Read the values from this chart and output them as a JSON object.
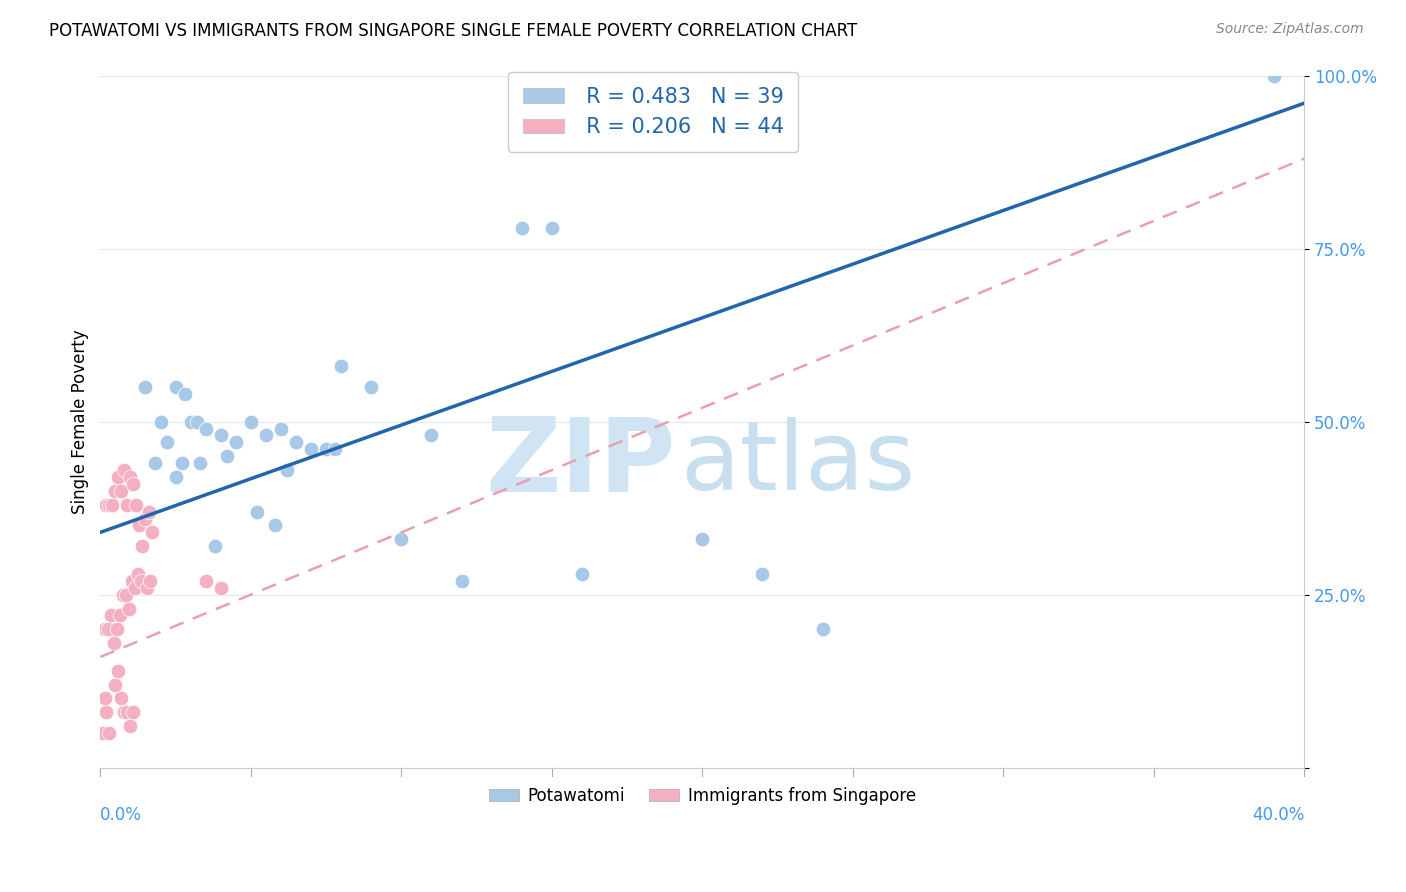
{
  "title": "POTAWATOMI VS IMMIGRANTS FROM SINGAPORE SINGLE FEMALE POVERTY CORRELATION CHART",
  "source": "Source: ZipAtlas.com",
  "ylabel": "Single Female Poverty",
  "blue_color": "#a8c8e8",
  "pink_color": "#f4b0c0",
  "blue_line_color": "#2166ac",
  "pink_line_color": "#e8a0b0",
  "watermark_zip_color": "#d0e4f4",
  "watermark_atlas_color": "#c8dff0",
  "xmin": 0.0,
  "xmax": 40.0,
  "ymin": 0.0,
  "ymax": 100.0,
  "legend_blue_r": "R = 0.483",
  "legend_blue_n": "N = 39",
  "legend_pink_r": "R = 0.206",
  "legend_pink_n": "N = 44",
  "blue_intercept": 34.0,
  "blue_slope": 1.55,
  "pink_intercept": 16.0,
  "pink_slope": 1.8,
  "pot_x": [
    1.0,
    1.5,
    2.0,
    2.5,
    2.8,
    3.0,
    3.2,
    3.5,
    4.0,
    4.5,
    5.0,
    5.5,
    6.0,
    6.5,
    7.0,
    7.5,
    8.0,
    9.0,
    10.0,
    11.0,
    12.0,
    14.0,
    15.0,
    16.0,
    20.0,
    22.0,
    24.0,
    1.8,
    2.2,
    2.7,
    3.3,
    4.2,
    5.2,
    6.2,
    7.8,
    2.5,
    3.8,
    5.8,
    39.0
  ],
  "pot_y": [
    42,
    55,
    50,
    55,
    54,
    50,
    50,
    49,
    48,
    47,
    50,
    48,
    49,
    47,
    46,
    46,
    58,
    55,
    33,
    48,
    27,
    78,
    78,
    28,
    33,
    28,
    20,
    44,
    47,
    44,
    44,
    45,
    37,
    43,
    46,
    42,
    32,
    35,
    100
  ],
  "sing_x": [
    0.2,
    0.3,
    0.4,
    0.5,
    0.6,
    0.7,
    0.8,
    0.9,
    1.0,
    1.1,
    1.2,
    1.3,
    1.4,
    1.5,
    1.6,
    1.7,
    0.15,
    0.25,
    0.35,
    0.45,
    0.55,
    0.65,
    0.75,
    0.85,
    0.95,
    1.05,
    1.15,
    1.25,
    1.35,
    1.55,
    1.65,
    0.5,
    0.6,
    0.7,
    0.8,
    0.9,
    1.0,
    1.1,
    3.5,
    4.0,
    0.1,
    0.2,
    0.3,
    0.15
  ],
  "sing_y": [
    38,
    38,
    38,
    40,
    42,
    40,
    43,
    38,
    42,
    41,
    38,
    35,
    32,
    36,
    37,
    34,
    20,
    20,
    22,
    18,
    20,
    22,
    25,
    25,
    23,
    27,
    26,
    28,
    27,
    26,
    27,
    12,
    14,
    10,
    8,
    8,
    6,
    8,
    27,
    26,
    5,
    8,
    5,
    10
  ]
}
